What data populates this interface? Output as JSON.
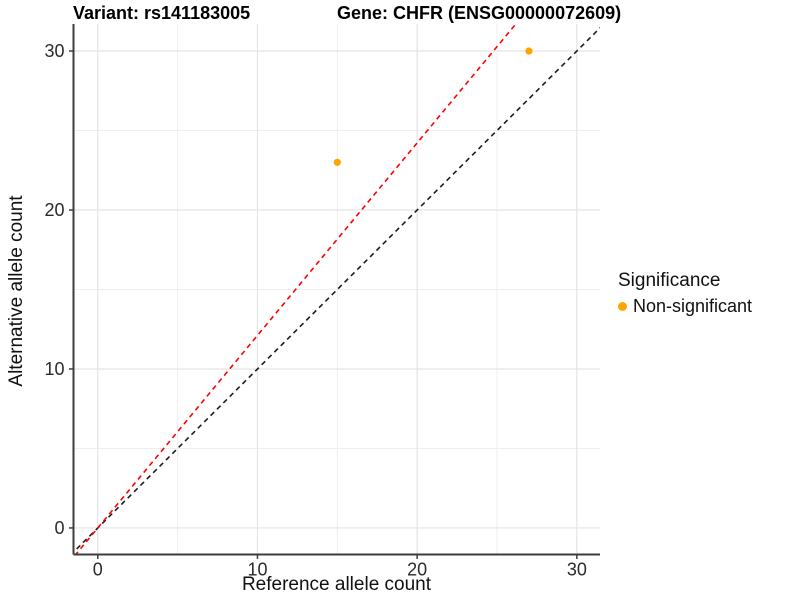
{
  "titles": {
    "variant": "Variant: rs141183005",
    "gene": "Gene: CHFR (ENSG00000072609)"
  },
  "axes": {
    "x_label": "Reference allele count",
    "y_label": "Alternative allele count"
  },
  "legend": {
    "title": "Significance",
    "items": [
      {
        "label": "Non-significant",
        "color": "#FFA500"
      }
    ]
  },
  "colors": {
    "point": "#FFA500",
    "fit_line": "#FF0000",
    "identity_line": "#1C1C1C",
    "grid_major": "#E4E4E4",
    "grid_minor": "#EFEFEF",
    "axis_line": "#3C3C3C",
    "tick_text": "#2B2B2B"
  },
  "chart_data": {
    "type": "scatter",
    "title": "Variant: rs141183005  /  Gene: CHFR (ENSG00000072609)",
    "xlabel": "Reference allele count",
    "ylabel": "Alternative allele count",
    "points": [
      {
        "x": 15,
        "y": 23,
        "series": "Non-significant"
      },
      {
        "x": 27,
        "y": 30,
        "series": "Non-significant"
      }
    ],
    "point_color": "#FFA500",
    "lines": [
      {
        "name": "identity",
        "slope": 1.0,
        "intercept": 0,
        "color": "#1C1C1C",
        "dashed": true
      },
      {
        "name": "fit",
        "slope": 1.211,
        "intercept": 0,
        "color": "#FF0000",
        "dashed": true
      }
    ],
    "x_ticks": [
      0,
      10,
      20,
      30
    ],
    "y_ticks": [
      0,
      10,
      20,
      30
    ],
    "x_minor": [
      5,
      15,
      25
    ],
    "y_minor": [
      5,
      15,
      25
    ],
    "xlim": [
      -1.52,
      31.45
    ],
    "ylim": [
      -1.67,
      31.7
    ],
    "grid": true,
    "legend_position": "right",
    "legend_title": "Significance",
    "legend_entries": [
      "Non-significant"
    ]
  }
}
